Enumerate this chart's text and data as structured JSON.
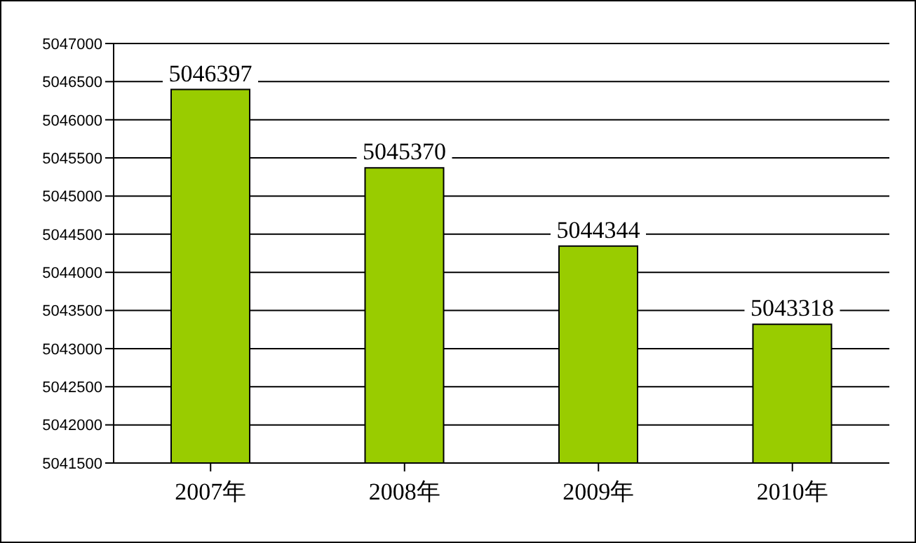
{
  "chart_data": {
    "type": "bar",
    "categories": [
      "2007年",
      "2008年",
      "2009年",
      "2010年"
    ],
    "series": [
      {
        "color": "#99cc00",
        "values": [
          5046397,
          5045370,
          5044344,
          5043318
        ]
      }
    ],
    "ylim": [
      5041500,
      5047000
    ],
    "yticks": [
      5041500,
      5042000,
      5042500,
      5043000,
      5043500,
      5044000,
      5044500,
      5045000,
      5045500,
      5046000,
      5046500,
      5047000
    ],
    "grid": "y",
    "data_labels": true,
    "legend": false
  }
}
